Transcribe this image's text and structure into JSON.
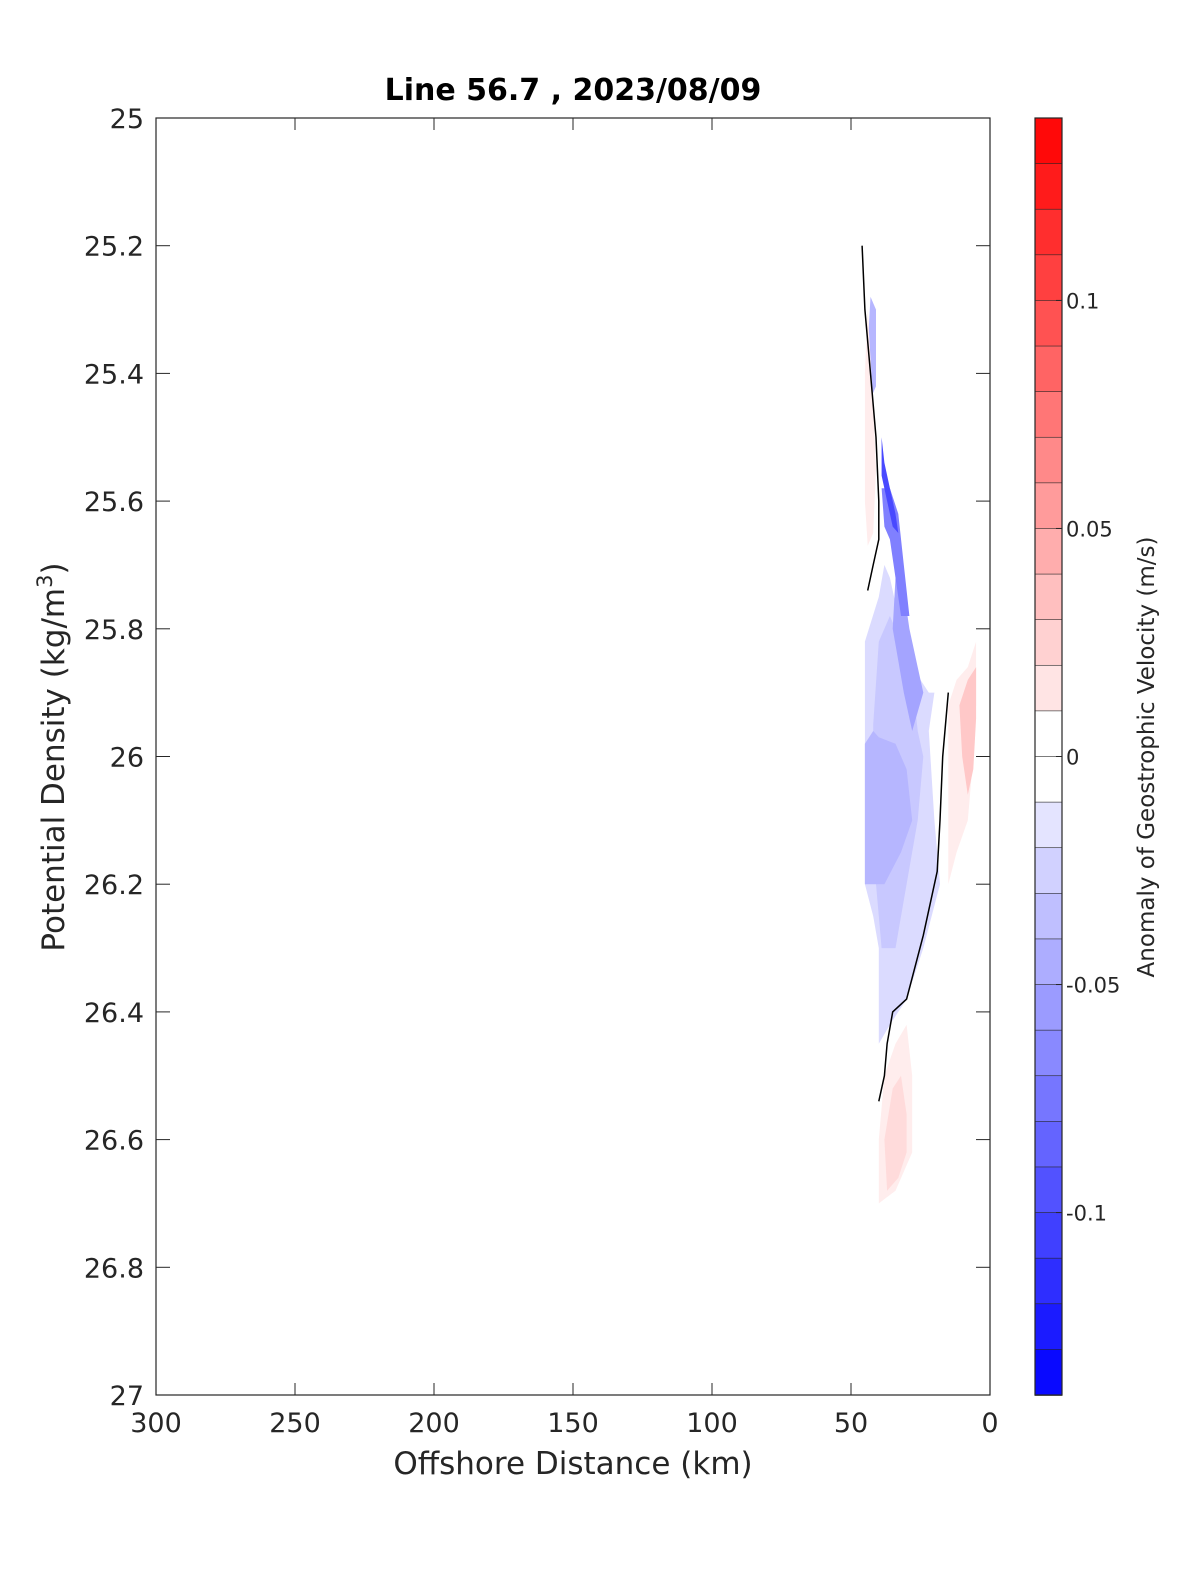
{
  "chart_data": {
    "type": "contour",
    "title": "Line 56.7 , 2023/08/09",
    "xlabel": "Offshore Distance (km)",
    "ylabel": {
      "main": "Potential Density (kg/m",
      "superscript": "3",
      "close": ")"
    },
    "colorbar_label": "Anomaly of Geostrophic Velocity (m/s)",
    "xlim": [
      300,
      0
    ],
    "x_reversed": true,
    "ylim": [
      25,
      27
    ],
    "y_reversed": true,
    "clim": [
      -0.14,
      0.14
    ],
    "color_levels": 28,
    "colormap": "blue-white-red",
    "colors": {
      "negative": "#0000ff",
      "zero": "#ffffff",
      "positive": "#ff0000",
      "contour_line": "#000000",
      "axes": "#262626"
    },
    "x_ticks": [
      {
        "value": 300,
        "label": "300"
      },
      {
        "value": 250,
        "label": "250"
      },
      {
        "value": 200,
        "label": "200"
      },
      {
        "value": 150,
        "label": "150"
      },
      {
        "value": 100,
        "label": "100"
      },
      {
        "value": 50,
        "label": "50"
      },
      {
        "value": 0,
        "label": "0"
      }
    ],
    "y_ticks": [
      {
        "value": 25,
        "label": "25"
      },
      {
        "value": 25.2,
        "label": "25.2"
      },
      {
        "value": 25.4,
        "label": "25.4"
      },
      {
        "value": 25.6,
        "label": "25.6"
      },
      {
        "value": 25.8,
        "label": "25.8"
      },
      {
        "value": 26,
        "label": "26"
      },
      {
        "value": 26.2,
        "label": "26.2"
      },
      {
        "value": 26.4,
        "label": "26.4"
      },
      {
        "value": 26.6,
        "label": "26.6"
      },
      {
        "value": 26.8,
        "label": "26.8"
      },
      {
        "value": 27,
        "label": "27"
      }
    ],
    "colorbar_ticks": [
      {
        "value": 0.1,
        "label": "0.1"
      },
      {
        "value": 0.05,
        "label": "0.05"
      },
      {
        "value": 0,
        "label": "0"
      },
      {
        "value": -0.05,
        "label": "-0.05"
      },
      {
        "value": -0.1,
        "label": "-0.1"
      }
    ],
    "contour_fills": [
      {
        "level": -0.02,
        "points": [
          [
            45,
            25.82
          ],
          [
            40,
            25.75
          ],
          [
            38,
            25.7
          ],
          [
            36,
            25.72
          ],
          [
            32,
            25.8
          ],
          [
            28,
            25.86
          ],
          [
            22,
            25.9
          ],
          [
            20,
            25.9
          ],
          [
            22,
            25.96
          ],
          [
            20,
            26.1
          ],
          [
            18,
            26.2
          ],
          [
            24,
            26.3
          ],
          [
            30,
            26.38
          ],
          [
            36,
            26.42
          ],
          [
            40,
            26.45
          ],
          [
            40,
            26.3
          ],
          [
            42,
            26.25
          ],
          [
            45,
            26.2
          ]
        ]
      },
      {
        "level": -0.03,
        "points": [
          [
            40,
            25.82
          ],
          [
            36,
            25.78
          ],
          [
            32,
            25.82
          ],
          [
            28,
            25.88
          ],
          [
            26,
            25.96
          ],
          [
            24,
            26.0
          ],
          [
            26,
            26.1
          ],
          [
            30,
            26.2
          ],
          [
            34,
            26.3
          ],
          [
            39,
            26.3
          ],
          [
            41,
            26.2
          ],
          [
            42,
            26.05
          ],
          [
            42,
            25.95
          ]
        ]
      },
      {
        "level": -0.04,
        "points": [
          [
            45,
            25.98
          ],
          [
            42,
            25.96
          ],
          [
            40,
            25.97
          ],
          [
            34,
            25.98
          ],
          [
            30,
            26.02
          ],
          [
            28,
            26.1
          ],
          [
            32,
            26.15
          ],
          [
            38,
            26.2
          ],
          [
            42,
            26.2
          ],
          [
            45,
            26.2
          ]
        ]
      },
      {
        "level": -0.05,
        "points": [
          [
            34,
            25.72
          ],
          [
            31,
            25.74
          ],
          [
            29,
            25.8
          ],
          [
            26,
            25.86
          ],
          [
            24,
            25.9
          ],
          [
            28,
            25.96
          ],
          [
            31,
            25.9
          ],
          [
            33,
            25.85
          ],
          [
            35,
            25.8
          ]
        ]
      },
      {
        "level": -0.07,
        "points": [
          [
            39,
            25.58
          ],
          [
            36,
            25.58
          ],
          [
            33,
            25.62
          ],
          [
            31,
            25.7
          ],
          [
            29,
            25.78
          ],
          [
            32,
            25.78
          ],
          [
            34,
            25.72
          ],
          [
            36,
            25.66
          ],
          [
            38,
            25.64
          ]
        ]
      },
      {
        "level": -0.1,
        "points": [
          [
            39,
            25.5
          ],
          [
            38,
            25.54
          ],
          [
            36,
            25.58
          ],
          [
            34,
            25.62
          ],
          [
            33,
            25.65
          ],
          [
            35,
            25.64
          ],
          [
            37,
            25.6
          ],
          [
            39,
            25.56
          ]
        ]
      },
      {
        "level": -0.04,
        "points": [
          [
            43,
            25.28
          ],
          [
            41,
            25.3
          ],
          [
            41,
            25.42
          ],
          [
            43,
            25.44
          ],
          [
            44,
            25.36
          ]
        ]
      },
      {
        "level": 0.01,
        "points": [
          [
            45,
            25.4
          ],
          [
            44,
            25.3
          ],
          [
            42,
            25.45
          ],
          [
            41,
            25.55
          ],
          [
            42,
            25.65
          ],
          [
            44,
            25.67
          ],
          [
            45,
            25.6
          ]
        ]
      },
      {
        "level": 0.01,
        "points": [
          [
            15,
            25.92
          ],
          [
            12,
            25.88
          ],
          [
            8,
            25.86
          ],
          [
            5,
            25.82
          ],
          [
            5,
            25.92
          ],
          [
            6,
            26.0
          ],
          [
            8,
            26.1
          ],
          [
            12,
            26.15
          ],
          [
            15,
            26.2
          ]
        ]
      },
      {
        "level": 0.03,
        "points": [
          [
            11,
            25.92
          ],
          [
            8,
            25.88
          ],
          [
            5,
            25.86
          ],
          [
            5,
            25.94
          ],
          [
            6,
            26.02
          ],
          [
            8,
            26.06
          ],
          [
            10,
            26.0
          ]
        ]
      },
      {
        "level": 0.01,
        "points": [
          [
            40,
            26.6
          ],
          [
            38,
            26.5
          ],
          [
            34,
            26.45
          ],
          [
            30,
            26.42
          ],
          [
            28,
            26.5
          ],
          [
            28,
            26.62
          ],
          [
            34,
            26.68
          ],
          [
            40,
            26.7
          ]
        ]
      },
      {
        "level": 0.02,
        "points": [
          [
            38,
            26.6
          ],
          [
            35,
            26.52
          ],
          [
            32,
            26.5
          ],
          [
            30,
            26.56
          ],
          [
            30,
            26.62
          ],
          [
            33,
            26.66
          ],
          [
            37,
            26.68
          ]
        ]
      }
    ],
    "contour_line_zero": [
      [
        [
          46,
          25.2
        ],
        [
          45,
          25.3
        ],
        [
          43,
          25.4
        ],
        [
          41,
          25.5
        ],
        [
          40,
          25.6
        ],
        [
          40,
          25.66
        ],
        [
          42,
          25.7
        ],
        [
          44,
          25.74
        ]
      ],
      [
        [
          15,
          25.9
        ],
        [
          17,
          26.0
        ],
        [
          18,
          26.1
        ],
        [
          19,
          26.18
        ],
        [
          24,
          26.28
        ],
        [
          30,
          26.38
        ],
        [
          35,
          26.4
        ],
        [
          37,
          26.45
        ],
        [
          38,
          26.5
        ],
        [
          40,
          26.54
        ]
      ]
    ]
  }
}
